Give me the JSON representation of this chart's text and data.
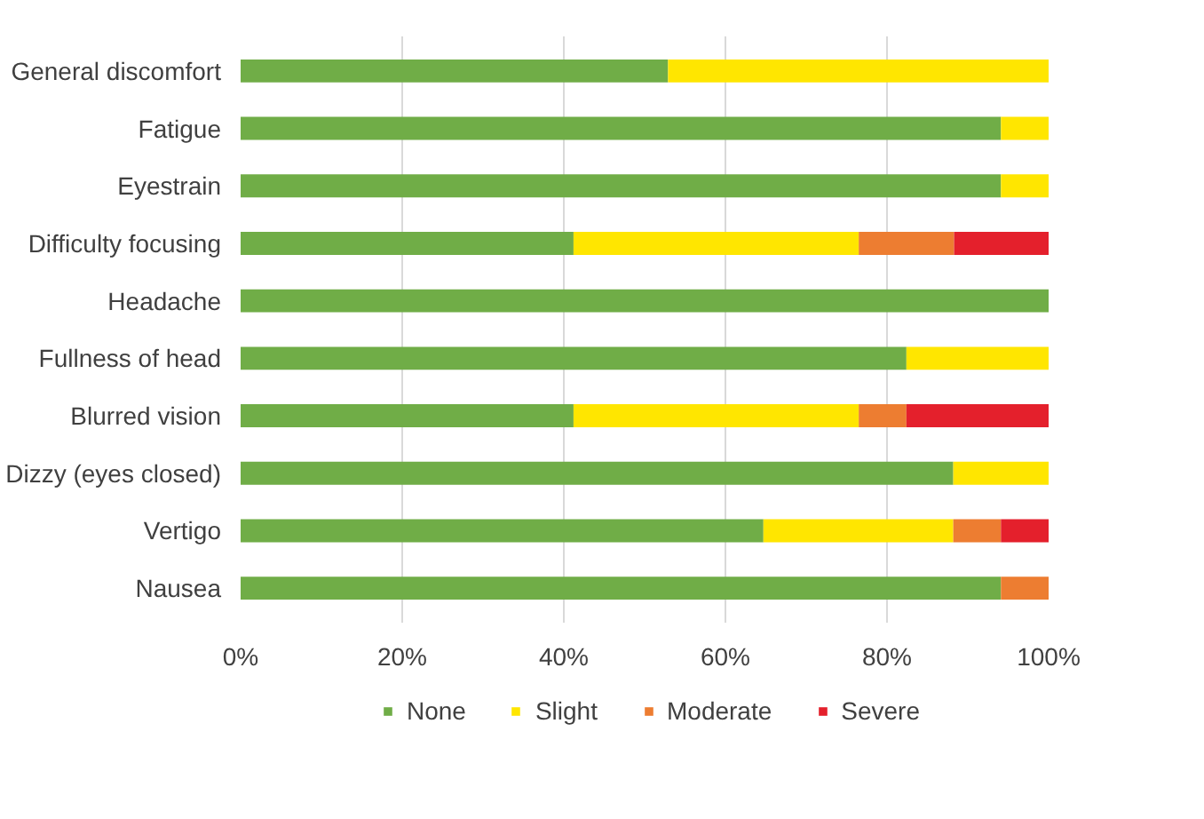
{
  "chart_data": {
    "type": "bar",
    "orientation": "horizontal",
    "stacked": true,
    "categories": [
      "General discomfort",
      "Fatigue",
      "Eyestrain",
      "Difficulty focusing",
      "Headache",
      "Fullness of head",
      "Blurred vision",
      "Dizzy (eyes closed)",
      "Vertigo",
      "Nausea"
    ],
    "series": [
      {
        "name": "None",
        "color": "#70ad47",
        "values": [
          52.9,
          94.1,
          94.1,
          41.2,
          100,
          82.4,
          41.2,
          88.2,
          64.7,
          94.1
        ]
      },
      {
        "name": "Slight",
        "color": "#ffe600",
        "values": [
          47.1,
          5.9,
          5.9,
          35.3,
          0,
          17.6,
          35.3,
          11.8,
          23.5,
          0
        ]
      },
      {
        "name": "Moderate",
        "color": "#ed7d31",
        "values": [
          0,
          0,
          0,
          11.8,
          0,
          0,
          5.9,
          0,
          5.9,
          5.9
        ]
      },
      {
        "name": "Severe",
        "color": "#e4202c",
        "values": [
          0,
          0,
          0,
          11.7,
          0,
          0,
          17.6,
          0,
          5.9,
          0
        ]
      }
    ],
    "xlim": [
      0,
      100
    ],
    "xticks": [
      {
        "value": 0,
        "label": "0%"
      },
      {
        "value": 20,
        "label": "20%"
      },
      {
        "value": 40,
        "label": "40%"
      },
      {
        "value": 60,
        "label": "60%"
      },
      {
        "value": 80,
        "label": "80%"
      },
      {
        "value": 100,
        "label": "100%"
      }
    ],
    "grid": "x",
    "legend": "bottom"
  }
}
